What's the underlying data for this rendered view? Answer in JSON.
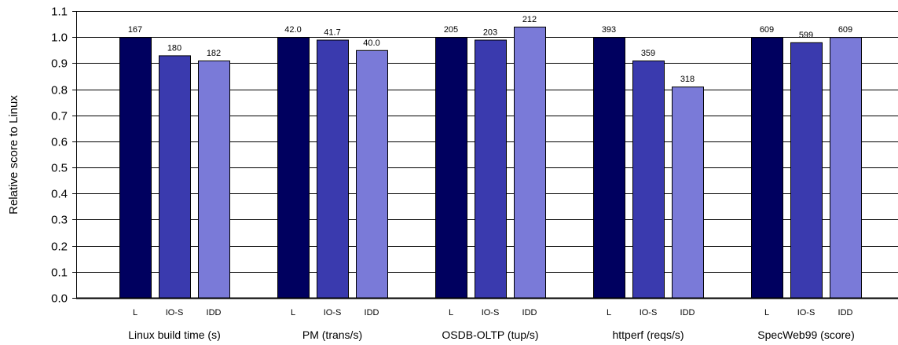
{
  "chart_data": {
    "type": "bar",
    "title": "",
    "xlabel": "",
    "ylabel": "Relative score to Linux",
    "ylim": [
      0,
      1.1
    ],
    "yticks": [
      0.0,
      0.1,
      0.2,
      0.3,
      0.4,
      0.5,
      0.6,
      0.7,
      0.8,
      0.9,
      1.0,
      1.1
    ],
    "ytick_labels": [
      "0.0",
      "0.1",
      "0.2",
      "0.3",
      "0.4",
      "0.5",
      "0.6",
      "0.7",
      "0.8",
      "0.9",
      "1.0",
      "1.1"
    ],
    "grid": "horizontal",
    "legend": "none",
    "categories": [
      "Linux build time (s)",
      "PM (trans/s)",
      "OSDB-OLTP (tup/s)",
      "httperf (reqs/s)",
      "SpecWeb99 (score)"
    ],
    "series": [
      {
        "name": "L",
        "color": "#00005f",
        "values": [
          1.0,
          1.0,
          1.0,
          1.0,
          1.0
        ],
        "labels": [
          "167",
          "42.0",
          "205",
          "393",
          "609"
        ]
      },
      {
        "name": "IO-S",
        "color": "#3a3aae",
        "values": [
          0.93,
          0.99,
          0.99,
          0.91,
          0.98
        ],
        "labels": [
          "180",
          "41.7",
          "203",
          "359",
          "599"
        ]
      },
      {
        "name": "IDD",
        "color": "#7a7ad8",
        "values": [
          0.91,
          0.95,
          1.04,
          0.81,
          1.0
        ],
        "labels": [
          "182",
          "40.0",
          "212",
          "318",
          "609"
        ]
      }
    ]
  }
}
